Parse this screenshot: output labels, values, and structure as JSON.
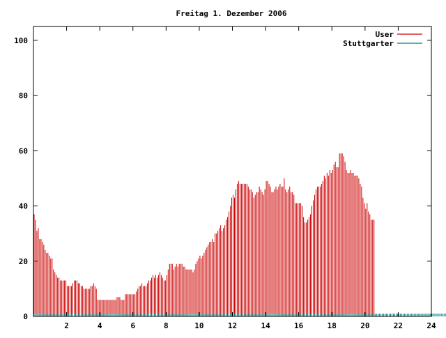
{
  "chart_data": {
    "type": "bar",
    "title": "Freitag 1. Dezember 2006",
    "xlabel": "",
    "ylabel": "",
    "xlim": [
      0,
      24
    ],
    "ylim": [
      0,
      105
    ],
    "xticks": [
      2,
      4,
      6,
      8,
      10,
      12,
      14,
      16,
      18,
      20,
      22,
      24
    ],
    "yticks": [
      0,
      20,
      40,
      60,
      80,
      100
    ],
    "grid": false,
    "legend_position": "top-right",
    "interval_minutes": 5,
    "series": [
      {
        "name": "User",
        "color": "#cc0000",
        "values": [
          37,
          35,
          31,
          32,
          28,
          28,
          27,
          26,
          24,
          23,
          23,
          22,
          21,
          21,
          17,
          16,
          15,
          14,
          14,
          13,
          13,
          13,
          13,
          13,
          11,
          11,
          11,
          11,
          12,
          13,
          13,
          13,
          12,
          12,
          11,
          11,
          10,
          10,
          10,
          10,
          10,
          11,
          11,
          12,
          11,
          10,
          6,
          6,
          6,
          6,
          6,
          6,
          6,
          6,
          6,
          6,
          6,
          6,
          6,
          6,
          7,
          7,
          7,
          6,
          6,
          6,
          8,
          8,
          8,
          8,
          8,
          8,
          8,
          8,
          9,
          10,
          11,
          11,
          12,
          11,
          11,
          11,
          12,
          13,
          13,
          14,
          15,
          14,
          15,
          14,
          15,
          16,
          15,
          14,
          13,
          13,
          15,
          17,
          19,
          19,
          19,
          17,
          18,
          19,
          18,
          19,
          19,
          19,
          18,
          18,
          17,
          17,
          17,
          17,
          17,
          16,
          17,
          19,
          20,
          21,
          22,
          21,
          22,
          23,
          24,
          25,
          26,
          27,
          27,
          28,
          27,
          30,
          30,
          31,
          32,
          33,
          31,
          32,
          33,
          35,
          36,
          38,
          40,
          43,
          44,
          43,
          46,
          48,
          49,
          48,
          48,
          48,
          48,
          48,
          48,
          47,
          46,
          46,
          45,
          43,
          44,
          45,
          45,
          47,
          46,
          45,
          44,
          46,
          49,
          49,
          48,
          47,
          45,
          45,
          46,
          47,
          46,
          47,
          48,
          47,
          47,
          50,
          46,
          45,
          46,
          47,
          45,
          45,
          44,
          41,
          41,
          41,
          41,
          41,
          40,
          36,
          34,
          34,
          35,
          36,
          37,
          40,
          42,
          44,
          46,
          47,
          47,
          47,
          48,
          49,
          51,
          50,
          52,
          51,
          53,
          52,
          53,
          55,
          56,
          54,
          54,
          59,
          59,
          59,
          58,
          56,
          53,
          52,
          52,
          53,
          52,
          52,
          51,
          51,
          51,
          50,
          48,
          47,
          43,
          41,
          39,
          41,
          38,
          37,
          35,
          35,
          35
        ]
      },
      {
        "name": "Stuttgarter",
        "color": "#008080",
        "values": [
          1,
          1,
          1,
          1,
          1,
          1,
          1,
          1,
          1,
          1,
          1,
          1,
          1,
          1,
          1,
          1,
          1,
          1,
          1,
          1,
          1,
          1,
          1,
          1,
          1,
          1,
          1,
          1,
          1,
          1,
          1,
          1,
          1,
          1,
          1,
          1,
          1,
          1,
          1,
          1,
          1,
          1,
          1,
          1,
          1,
          1,
          1,
          1,
          1,
          1,
          1,
          1,
          1,
          1,
          1,
          1,
          1,
          1,
          1,
          1,
          1,
          1,
          1,
          1,
          1,
          1,
          1,
          1,
          1,
          1,
          1,
          1,
          1,
          1,
          1,
          1,
          1,
          1,
          1,
          1,
          1,
          1,
          1,
          1,
          1,
          1,
          1,
          1,
          1,
          1,
          1,
          1,
          1,
          1,
          1,
          1,
          1,
          1,
          1,
          1,
          1,
          1,
          1,
          1,
          1,
          1,
          1,
          1,
          1,
          1,
          1,
          1,
          1,
          1,
          1,
          1,
          1,
          1,
          1,
          1,
          1,
          1,
          1,
          1,
          1,
          1,
          1,
          1,
          1,
          1,
          1,
          1,
          1,
          1,
          1,
          1,
          1,
          1,
          1,
          1,
          1,
          1,
          1,
          1,
          1,
          1,
          1,
          1,
          1,
          1,
          1,
          1,
          1,
          1,
          1,
          1,
          1,
          1,
          1,
          1,
          1,
          1,
          1,
          1,
          1,
          1,
          1,
          1,
          1,
          1,
          1,
          1,
          1,
          1,
          1,
          1,
          1,
          1,
          1,
          1,
          1,
          1,
          1,
          1,
          1,
          1,
          1,
          1,
          1,
          1,
          1,
          1,
          1,
          1,
          1,
          1,
          1,
          1,
          1,
          1,
          1,
          1,
          1,
          1,
          1,
          1,
          1,
          1,
          1,
          1,
          1,
          1,
          1,
          1,
          1,
          1,
          1,
          1,
          1,
          1,
          1,
          1,
          1,
          1,
          1,
          1,
          1,
          1,
          1,
          1,
          1,
          1,
          1,
          1,
          1,
          1,
          1,
          1,
          1,
          1,
          1,
          1,
          1,
          1,
          1,
          1,
          1,
          1,
          1,
          1,
          1,
          1,
          1,
          1,
          1,
          1,
          1,
          1,
          1,
          1,
          1,
          1,
          1,
          1,
          1,
          1,
          1,
          1,
          1,
          1,
          1,
          1,
          1,
          1,
          1,
          1,
          1,
          1,
          1,
          1,
          1,
          1,
          1,
          1,
          1,
          1,
          1,
          1,
          1,
          1,
          1,
          1,
          1,
          1,
          1,
          1,
          1,
          1,
          1,
          1,
          1,
          1,
          1,
          1,
          1,
          1,
          1,
          1,
          1
        ]
      }
    ]
  }
}
